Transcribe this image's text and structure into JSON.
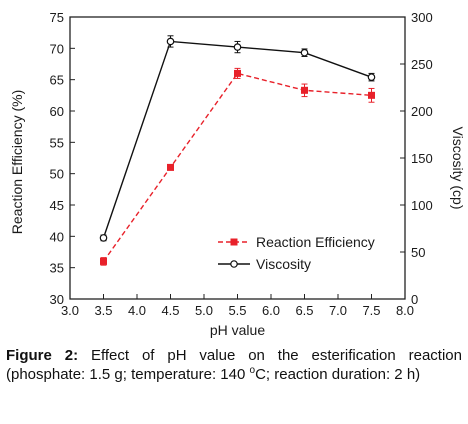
{
  "chart_data": {
    "type": "line",
    "xlabel": "pH value",
    "ylabel": "Reaction Efficiency (%)",
    "y2label": "Viscosity (cp)",
    "xlim": [
      3.0,
      8.0
    ],
    "ylim": [
      30,
      75
    ],
    "y2lim": [
      0,
      300
    ],
    "xticks": [
      "3.0",
      "3.5",
      "4.0",
      "4.5",
      "5.0",
      "5.5",
      "6.0",
      "6.5",
      "7.0",
      "7.5",
      "8.0"
    ],
    "yticks": [
      "30",
      "35",
      "40",
      "45",
      "50",
      "55",
      "60",
      "65",
      "70",
      "75"
    ],
    "y2ticks": [
      "0",
      "50",
      "100",
      "150",
      "200",
      "250",
      "300"
    ],
    "legend_position": "lower-center",
    "series": [
      {
        "name": "Reaction Efficiency",
        "axis": "left",
        "color": "#e8212a",
        "line_style": "dashed",
        "marker": "filled-square",
        "x": [
          3.5,
          4.5,
          5.5,
          6.5,
          7.5
        ],
        "y": [
          36.0,
          51.0,
          66.0,
          63.3,
          62.5
        ],
        "error": [
          0.6,
          0.4,
          0.8,
          1.0,
          1.1
        ]
      },
      {
        "name": "Viscosity",
        "axis": "right",
        "color": "#111111",
        "line_style": "solid",
        "marker": "open-circle",
        "x": [
          3.5,
          4.5,
          5.5,
          6.5,
          7.5
        ],
        "y": [
          65,
          274,
          268,
          262,
          236
        ],
        "error": [
          3,
          6,
          6,
          4,
          4
        ]
      }
    ]
  },
  "caption": {
    "label": "Figure 2:",
    "text_before_sup": " Effect of pH value on the esterification reaction (phosphate: 1.5 g; temperature: 140 ",
    "sup": "o",
    "text_after_sup": "C; reaction duration: 2 h)"
  }
}
